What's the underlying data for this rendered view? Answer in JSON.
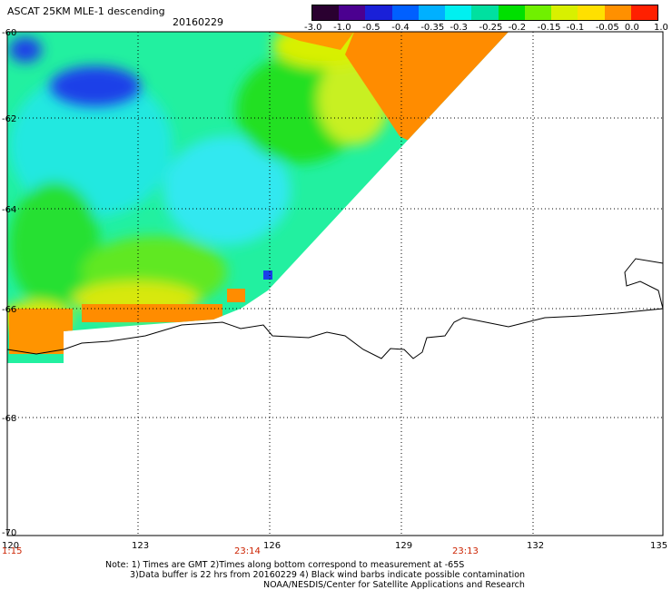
{
  "header": {
    "title": "ASCAT 25KM MLE-1 descending",
    "date": "20160229"
  },
  "colorbar": {
    "labels": [
      "-3.0",
      "-1.0",
      "-0.5",
      "-0.4",
      "-0.35",
      "-0.3",
      "-0.25",
      "-0.2",
      "-0.15",
      "-0.1",
      "-0.05",
      "0.0",
      "1.0"
    ],
    "colors": [
      "#2a0030",
      "#4b0090",
      "#1a20d8",
      "#0060ff",
      "#00b0ff",
      "#00f0f0",
      "#00e0a0",
      "#00e000",
      "#70f000",
      "#d8f000",
      "#ffe000",
      "#ff9000",
      "#ff2000"
    ]
  },
  "map": {
    "lat_labels": [
      "-60",
      "-62",
      "-64",
      "-66",
      "-68",
      "-70"
    ],
    "lon_labels": [
      "120",
      "123",
      "126",
      "129",
      "132",
      "135"
    ],
    "time_labels": [
      "1:15",
      "23:14",
      "23:13"
    ],
    "colors": {
      "deep_blue": "#1a40e8",
      "blue": "#3a8cff",
      "cyan": "#22f0f0",
      "aqua_green": "#10e8a0",
      "green": "#20e020",
      "lime": "#90f010",
      "yellow": "#f0f000",
      "orange": "#ff8c00"
    }
  },
  "notes": {
    "line1": "Note: 1) Times are GMT 2)Times along bottom correspond to measurement at -65S",
    "line2": "3)Data buffer is 22 hrs from 20160229 4) Black wind barbs indicate possible contamination",
    "line3": "NOAA/NESDIS/Center for Satellite Applications and Research"
  }
}
